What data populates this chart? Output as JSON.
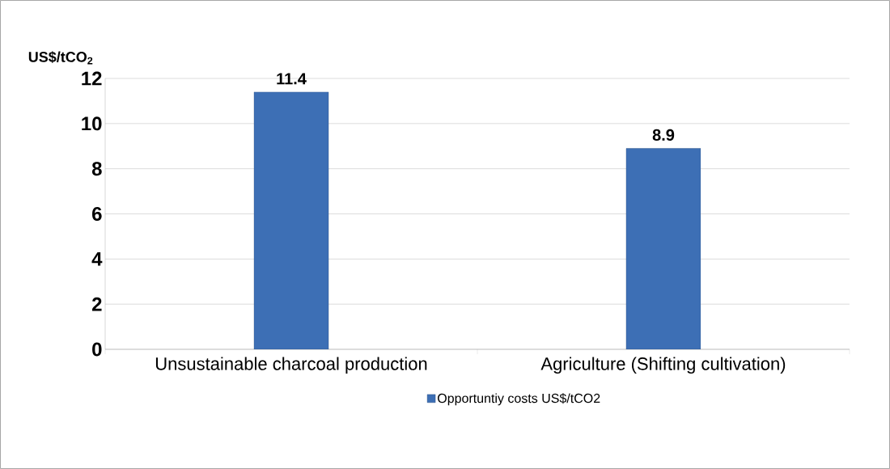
{
  "chart_data": {
    "type": "bar",
    "ylabel": "US$/tCO$_{2}$",
    "categories": [
      "Unsustainable charcoal production",
      "Agriculture (Shifting cultivation)"
    ],
    "series": [
      {
        "name": "Opportuntiy costs US$/tCO2",
        "color": "#3d6fb5",
        "values": [
          11.4,
          8.9
        ]
      }
    ],
    "ylim": [
      0,
      12
    ],
    "yticks": [
      0,
      2,
      4,
      6,
      8,
      10,
      12
    ],
    "grid": "y",
    "legend": "bottom",
    "data_labels": true
  }
}
